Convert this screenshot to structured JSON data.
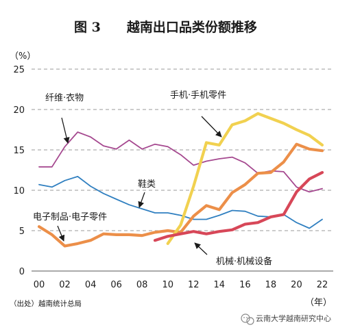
{
  "chart_data": {
    "type": "line",
    "title": "图 3　　越南出口品类份额推移",
    "ylabel": "（%）",
    "xlabel": "（年）",
    "source": "（出处）越南统计总局",
    "watermark": "云南大学越南研究中心",
    "ylim": [
      0,
      25
    ],
    "xlim": [
      2000,
      2022
    ],
    "yticks": [
      0,
      5,
      10,
      15,
      20,
      25
    ],
    "xticks": [
      {
        "value": 2000,
        "label": "00"
      },
      {
        "value": 2002,
        "label": "02"
      },
      {
        "value": 2004,
        "label": "04"
      },
      {
        "value": 2006,
        "label": "06"
      },
      {
        "value": 2008,
        "label": "08"
      },
      {
        "value": 2010,
        "label": "10"
      },
      {
        "value": 2012,
        "label": "12"
      },
      {
        "value": 2014,
        "label": "14"
      },
      {
        "value": 2016,
        "label": "16"
      },
      {
        "value": 2018,
        "label": "18"
      },
      {
        "value": 2020,
        "label": "20"
      },
      {
        "value": 2022,
        "label": "22"
      }
    ],
    "grid": "horizontal dashed",
    "series": [
      {
        "name": "纤维·衣物",
        "color": "#a5488f",
        "x": [
          2000,
          2001,
          2002,
          2003,
          2004,
          2005,
          2006,
          2007,
          2008,
          2009,
          2010,
          2011,
          2012,
          2013,
          2014,
          2015,
          2016,
          2017,
          2018,
          2019,
          2020,
          2021,
          2022
        ],
        "values": [
          12.9,
          12.9,
          15.4,
          17.2,
          16.6,
          15.5,
          15.1,
          16.2,
          15.1,
          15.7,
          15.4,
          14.4,
          13.1,
          13.6,
          13.9,
          14.1,
          13.4,
          12.1,
          12.4,
          12.3,
          10.4,
          9.8,
          10.2
        ]
      },
      {
        "name": "鞋类",
        "color": "#2f7fc0",
        "x": [
          2000,
          2001,
          2002,
          2003,
          2004,
          2005,
          2006,
          2007,
          2008,
          2009,
          2010,
          2011,
          2012,
          2013,
          2014,
          2015,
          2016,
          2017,
          2018,
          2019,
          2020,
          2021,
          2022
        ],
        "values": [
          10.7,
          10.4,
          11.2,
          11.7,
          10.5,
          9.6,
          8.9,
          8.2,
          7.7,
          7.2,
          7.2,
          6.9,
          6.4,
          6.4,
          6.9,
          7.5,
          7.4,
          6.8,
          6.7,
          7.0,
          6.0,
          5.3,
          6.4
        ]
      },
      {
        "name": "电子制品·电子零件",
        "color": "#ec8f49",
        "x": [
          2000,
          2001,
          2002,
          2003,
          2004,
          2005,
          2006,
          2007,
          2008,
          2009,
          2010,
          2011,
          2012,
          2013,
          2014,
          2015,
          2016,
          2017,
          2018,
          2019,
          2020,
          2021,
          2022
        ],
        "values": [
          5.5,
          4.5,
          3.1,
          3.4,
          3.8,
          4.6,
          4.5,
          4.5,
          4.4,
          4.8,
          5.0,
          4.8,
          6.8,
          8.1,
          7.6,
          9.7,
          10.7,
          12.1,
          12.2,
          13.5,
          15.7,
          15.1,
          14.9
        ]
      },
      {
        "name": "手机·手机零件",
        "color": "#f1d150",
        "x": [
          2010,
          2011,
          2012,
          2013,
          2014,
          2015,
          2016,
          2017,
          2018,
          2019,
          2020,
          2021,
          2022
        ],
        "values": [
          3.4,
          5.7,
          10.5,
          15.9,
          15.6,
          18.1,
          18.6,
          19.5,
          18.9,
          18.3,
          17.5,
          16.8,
          15.6
        ]
      },
      {
        "name": "机械·机械设备",
        "color": "#d74758",
        "x": [
          2009,
          2010,
          2011,
          2012,
          2013,
          2014,
          2015,
          2016,
          2017,
          2018,
          2019,
          2020,
          2021,
          2022
        ],
        "values": [
          3.8,
          4.3,
          4.6,
          4.9,
          4.6,
          4.9,
          5.1,
          5.8,
          6.0,
          6.7,
          7.0,
          9.8,
          11.4,
          12.2
        ]
      }
    ],
    "annotations": [
      {
        "text": "纤维·衣物",
        "series": "纤维·衣物"
      },
      {
        "text": "手机·手机零件",
        "series": "手机·手机零件"
      },
      {
        "text": "鞋类",
        "series": "鞋类"
      },
      {
        "text": "电子制品·电子零件",
        "series": "电子制品·电子零件"
      },
      {
        "text": "机械·机械设备",
        "series": "机械·机械设备"
      }
    ]
  }
}
